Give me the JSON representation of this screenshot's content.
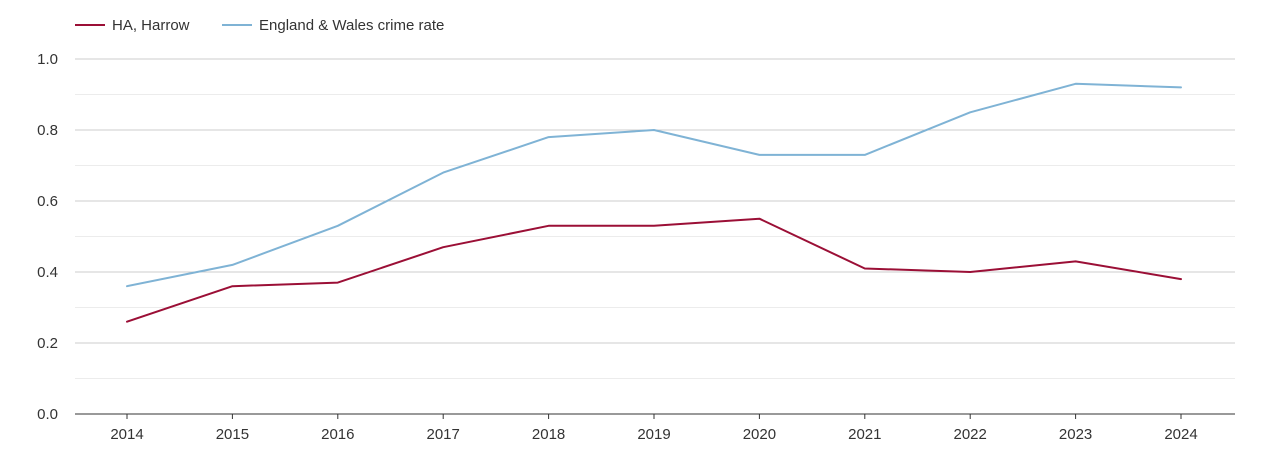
{
  "chart_data": {
    "type": "line",
    "title": "",
    "xlabel": "",
    "ylabel": "",
    "ylim": [
      0,
      1.0
    ],
    "y_ticks": [
      "0.0",
      "0.2",
      "0.4",
      "0.6",
      "0.8",
      "1.0"
    ],
    "y_tick_values": [
      0,
      0.2,
      0.4,
      0.6,
      0.8,
      1.0
    ],
    "categories": [
      "2014",
      "2015",
      "2016",
      "2017",
      "2018",
      "2019",
      "2020",
      "2021",
      "2022",
      "2023",
      "2024"
    ],
    "grid": true,
    "legend_position": "top-left",
    "series": [
      {
        "name": "HA, Harrow",
        "color": "#9b0f36",
        "values": [
          0.26,
          0.36,
          0.37,
          0.47,
          0.53,
          0.53,
          0.55,
          0.41,
          0.4,
          0.43,
          0.38
        ]
      },
      {
        "name": "England & Wales crime rate",
        "color": "#7fb3d5",
        "values": [
          0.36,
          0.42,
          0.53,
          0.68,
          0.78,
          0.8,
          0.73,
          0.73,
          0.85,
          0.93,
          0.92
        ]
      }
    ]
  }
}
